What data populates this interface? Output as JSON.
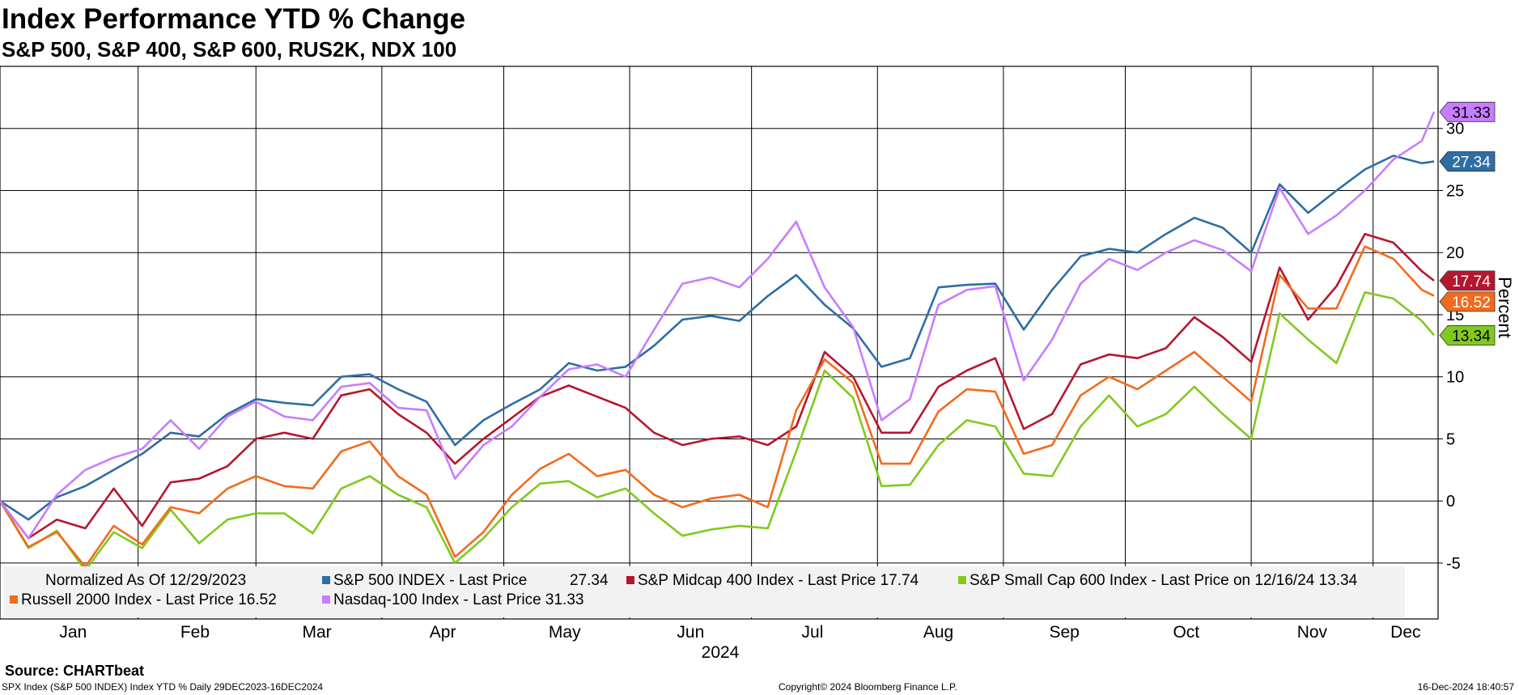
{
  "title": "Index Performance YTD % Change",
  "subtitle": "S&P 500, S&P 400, S&P 600, RUS2K, NDX 100",
  "source": "Source: CHARTbeat",
  "footer_left": "SPX Index (S&P 500 INDEX) Index YTD %  Daily 29DEC2023-16DEC2024",
  "footer_center": "Copyright© 2024 Bloomberg Finance L.P.",
  "footer_right": "16-Dec-2024 18:40:57",
  "legend": {
    "normalized": "Normalized As Of 12/29/2023",
    "items": [
      {
        "text": "S&P 500 INDEX - Last Price",
        "value": "27.34",
        "color": "#2e6da4"
      },
      {
        "text": "S&P Midcap 400 Index - Last Price 17.74",
        "color": "#b5172f"
      },
      {
        "text": "S&P Small Cap 600 Index - Last Price on 12/16/24 13.34",
        "color": "#82c91e"
      },
      {
        "text": "Russell 2000 Index - Last Price 16.52",
        "color": "#f26b1d"
      },
      {
        "text": "Nasdaq-100 Index - Last Price 31.33",
        "color": "#c77dff"
      }
    ]
  },
  "chart_data": {
    "type": "line",
    "xlabel": "2024",
    "ylabel": "Percent",
    "ylim": [
      -9.5,
      35
    ],
    "yticks": [
      -5,
      0,
      5,
      10,
      15,
      20,
      25,
      30
    ],
    "x_ticks": [
      "Jan",
      "Feb",
      "Mar",
      "Apr",
      "May",
      "Jun",
      "Jul",
      "Aug",
      "Sep",
      "Oct",
      "Nov",
      "Dec"
    ],
    "x_range": [
      "2023-12-29",
      "2024-12-17"
    ],
    "grid": true,
    "x": [
      "2023-12-29",
      "2024-01-05",
      "2024-01-12",
      "2024-01-19",
      "2024-01-26",
      "2024-02-02",
      "2024-02-09",
      "2024-02-16",
      "2024-02-23",
      "2024-03-01",
      "2024-03-08",
      "2024-03-15",
      "2024-03-22",
      "2024-03-29",
      "2024-04-05",
      "2024-04-12",
      "2024-04-19",
      "2024-04-26",
      "2024-05-03",
      "2024-05-10",
      "2024-05-17",
      "2024-05-24",
      "2024-05-31",
      "2024-06-07",
      "2024-06-14",
      "2024-06-21",
      "2024-06-28",
      "2024-07-05",
      "2024-07-12",
      "2024-07-19",
      "2024-07-26",
      "2024-08-02",
      "2024-08-09",
      "2024-08-16",
      "2024-08-23",
      "2024-08-30",
      "2024-09-06",
      "2024-09-13",
      "2024-09-20",
      "2024-09-27",
      "2024-10-04",
      "2024-10-11",
      "2024-10-18",
      "2024-10-25",
      "2024-11-01",
      "2024-11-08",
      "2024-11-15",
      "2024-11-22",
      "2024-11-29",
      "2024-12-06",
      "2024-12-13",
      "2024-12-16"
    ],
    "series": [
      {
        "name": "S&P 500 INDEX",
        "color": "#2e6da4",
        "last": "27.34",
        "values": [
          0.0,
          -1.5,
          0.3,
          1.2,
          2.5,
          3.8,
          5.5,
          5.2,
          7.0,
          8.2,
          7.9,
          7.7,
          10.0,
          10.2,
          9.0,
          8.0,
          4.5,
          6.5,
          7.8,
          9.0,
          11.1,
          10.5,
          10.8,
          12.5,
          14.6,
          14.9,
          14.5,
          16.5,
          18.2,
          15.8,
          13.9,
          10.8,
          11.5,
          17.2,
          17.4,
          17.5,
          13.8,
          17.0,
          19.7,
          20.3,
          20.0,
          21.5,
          22.8,
          22.0,
          20.0,
          25.5,
          23.2,
          25.0,
          26.7,
          27.8,
          27.2,
          27.34
        ]
      },
      {
        "name": "S&P Midcap 400 Index",
        "color": "#b5172f",
        "last": "17.74",
        "values": [
          0.0,
          -3.0,
          -1.5,
          -2.2,
          1.0,
          -2.0,
          1.5,
          1.8,
          2.8,
          5.0,
          5.5,
          5.0,
          8.5,
          9.0,
          7.0,
          5.5,
          3.0,
          5.0,
          6.7,
          8.4,
          9.3,
          8.4,
          7.5,
          5.5,
          4.5,
          5.0,
          5.2,
          4.5,
          6.0,
          12.0,
          10.0,
          5.5,
          5.5,
          9.2,
          10.5,
          11.5,
          5.8,
          7.0,
          11.0,
          11.8,
          11.5,
          12.3,
          14.8,
          13.2,
          11.2,
          18.8,
          14.6,
          17.3,
          21.5,
          20.8,
          18.5,
          17.74
        ]
      },
      {
        "name": "S&P Small Cap 600 Index",
        "color": "#82c91e",
        "last": "13.34",
        "values": [
          0.0,
          -3.8,
          -2.4,
          -5.6,
          -2.5,
          -3.8,
          -0.7,
          -3.4,
          -1.5,
          -1.0,
          -1.0,
          -2.6,
          1.0,
          2.0,
          0.5,
          -0.5,
          -5.0,
          -3.0,
          -0.5,
          1.4,
          1.6,
          0.3,
          1.0,
          -1.0,
          -2.8,
          -2.3,
          -2.0,
          -2.2,
          4.0,
          10.5,
          8.3,
          1.2,
          1.3,
          4.5,
          6.5,
          6.0,
          2.2,
          2.0,
          6.0,
          8.5,
          6.0,
          7.0,
          9.2,
          7.0,
          5.0,
          15.1,
          13.0,
          11.1,
          16.8,
          16.3,
          14.5,
          13.34
        ]
      },
      {
        "name": "Russell 2000 Index",
        "color": "#f26b1d",
        "last": "16.52",
        "values": [
          0.0,
          -3.7,
          -2.5,
          -5.3,
          -2.0,
          -3.5,
          -0.5,
          -1.0,
          1.0,
          2.0,
          1.2,
          1.0,
          4.0,
          4.8,
          2.0,
          0.5,
          -4.5,
          -2.5,
          0.5,
          2.6,
          3.8,
          2.0,
          2.5,
          0.5,
          -0.5,
          0.2,
          0.5,
          -0.5,
          7.3,
          11.4,
          9.5,
          3.0,
          3.0,
          7.2,
          9.0,
          8.8,
          3.8,
          4.5,
          8.5,
          10.0,
          9.0,
          10.5,
          12.0,
          10.0,
          8.0,
          18.2,
          15.5,
          15.5,
          20.5,
          19.5,
          17.0,
          16.52
        ]
      },
      {
        "name": "Nasdaq-100 Index",
        "color": "#c77dff",
        "last": "31.33",
        "values": [
          0.0,
          -3.0,
          0.5,
          2.5,
          3.5,
          4.2,
          6.5,
          4.2,
          6.8,
          8.0,
          6.8,
          6.5,
          9.2,
          9.5,
          7.5,
          7.3,
          1.8,
          4.5,
          6.0,
          8.4,
          10.6,
          11.0,
          10.0,
          13.8,
          17.5,
          18.0,
          17.2,
          19.5,
          22.5,
          17.2,
          14.0,
          6.5,
          8.2,
          15.8,
          17.0,
          17.3,
          9.7,
          13.0,
          17.5,
          19.5,
          18.6,
          20.0,
          21.0,
          20.2,
          18.5,
          25.2,
          21.5,
          23.0,
          25.0,
          27.5,
          29.0,
          31.33
        ]
      }
    ]
  }
}
